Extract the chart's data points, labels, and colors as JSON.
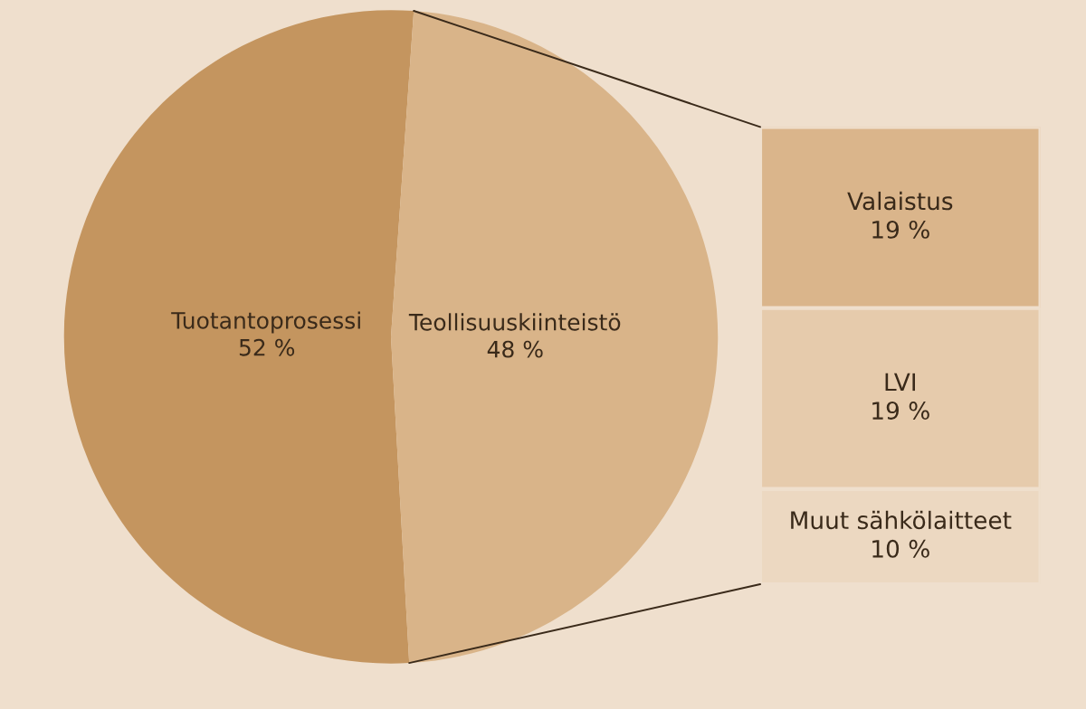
{
  "chart_data": [
    {
      "type": "pie",
      "categories": [
        "Tuotantoprosessi",
        "Teollisuuskiinteistö"
      ],
      "values": [
        52,
        48
      ],
      "value_labels": [
        "52 %",
        "48 %"
      ],
      "colors": [
        "#c4955f",
        "#d9b489"
      ]
    },
    {
      "type": "bar",
      "stacked": true,
      "categories": [
        null
      ],
      "series": [
        {
          "name": "Muut sähkölaitteet",
          "color": "#ecd8c1",
          "values": [
            10
          ],
          "value_labels": [
            "10 %"
          ]
        },
        {
          "name": "LVI",
          "color": "#e6cbac",
          "values": [
            19
          ],
          "value_labels": [
            "19 %"
          ]
        },
        {
          "name": "Valaistus",
          "color": "#dab58b",
          "values": [
            19
          ],
          "value_labels": [
            "19 %"
          ]
        }
      ]
    }
  ]
}
